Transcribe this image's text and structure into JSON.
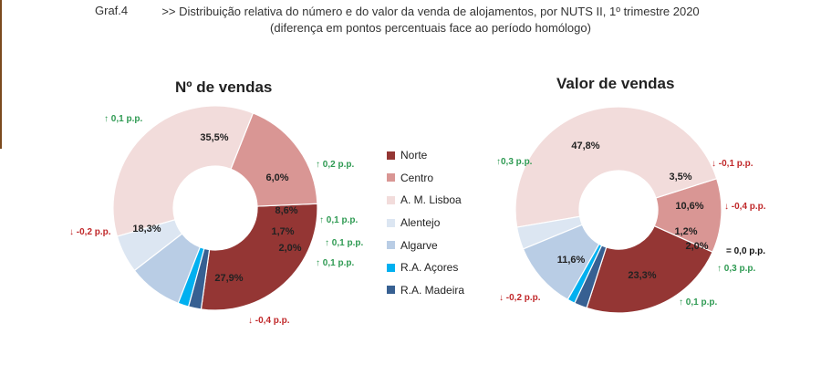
{
  "figure": {
    "label": "Graf.4",
    "title_line1": ">> Distribuição relativa do número e do valor da venda de alojamentos, por NUTS II, 1º trimestre 2020",
    "title_line2": "(diferença em pontos percentuais face ao período homólogo)"
  },
  "colors": {
    "Norte": "#943634",
    "Centro": "#d99694",
    "A. M. Lisboa": "#f2dcdb",
    "Alentejo": "#dce6f2",
    "Algarve": "#b9cde5",
    "R.A. Açores": "#00b0f0",
    "R.A. Madeira": "#376092",
    "up": "#2e9a52",
    "down": "#c0282a"
  },
  "legend": [
    "Norte",
    "Centro",
    "A. M. Lisboa",
    "Alentejo",
    "Algarve",
    "R.A. Açores",
    "R.A. Madeira"
  ],
  "chart_data": [
    {
      "type": "pie",
      "donut": true,
      "title": "Nº de vendas",
      "categories": [
        "Norte",
        "Centro",
        "A. M. Lisboa",
        "Alentejo",
        "Algarve",
        "R.A. Açores",
        "R.A. Madeira"
      ],
      "values": [
        27.9,
        18.3,
        35.5,
        6.0,
        8.6,
        1.7,
        2.0
      ],
      "labels": [
        "27,9%",
        "18,3%",
        "35,5%",
        "6,0%",
        "8,6%",
        "1,7%",
        "2,0%"
      ],
      "deltas": [
        "↓ -0,4 p.p.",
        "↓ -0,2 p.p.",
        "↑ 0,1 p.p.",
        "↑ 0,2 p.p.",
        "↑ 0,1 p.p.",
        "↑ 0,1 p.p.",
        "↑ 0,1 p.p."
      ],
      "delta_direction": [
        "down",
        "down",
        "up",
        "up",
        "up",
        "up",
        "up"
      ]
    },
    {
      "type": "pie",
      "donut": true,
      "title": "Valor de vendas",
      "categories": [
        "Norte",
        "Centro",
        "A. M. Lisboa",
        "Alentejo",
        "Algarve",
        "R.A. Açores",
        "R.A. Madeira"
      ],
      "values": [
        23.3,
        11.6,
        47.8,
        3.5,
        10.6,
        1.2,
        2.0
      ],
      "labels": [
        "23,3%",
        "11,6%",
        "47,8%",
        "3,5%",
        "10,6%",
        "1,2%",
        "2,0%"
      ],
      "deltas": [
        "↑ 0,1 p.p.",
        "↓ -0,2 p.p.",
        "↑0,3 p.p.",
        "↓ -0,1 p.p.",
        "↓ -0,4 p.p.",
        "= 0,0 p.p.",
        "↑ 0,3 p.p."
      ],
      "delta_direction": [
        "up",
        "down",
        "up",
        "down",
        "down",
        "neutral",
        "up"
      ]
    }
  ]
}
